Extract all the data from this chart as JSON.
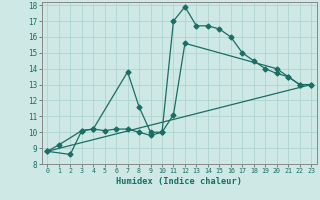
{
  "xlabel": "Humidex (Indice chaleur)",
  "bg_color": "#cde8e5",
  "grid_color": "#aed4d0",
  "line_color": "#1a6e64",
  "xlim": [
    -0.5,
    23.5
  ],
  "ylim": [
    8,
    18.2
  ],
  "xticks": [
    0,
    1,
    2,
    3,
    4,
    5,
    6,
    7,
    8,
    9,
    10,
    11,
    12,
    13,
    14,
    15,
    16,
    17,
    18,
    19,
    20,
    21,
    22,
    23
  ],
  "yticks": [
    8,
    9,
    10,
    11,
    12,
    13,
    14,
    15,
    16,
    17,
    18
  ],
  "line1_x": [
    0,
    1,
    3,
    4,
    7,
    8,
    9,
    10,
    11,
    12,
    13,
    14,
    15,
    16,
    17,
    18,
    19,
    20,
    21,
    22,
    23
  ],
  "line1_y": [
    8.8,
    9.2,
    10.1,
    10.2,
    13.8,
    11.6,
    10.0,
    10.0,
    17.0,
    17.9,
    16.7,
    16.7,
    16.5,
    16.0,
    15.0,
    14.5,
    14.0,
    13.7,
    13.5,
    13.0,
    13.0
  ],
  "line2_x": [
    0,
    2,
    3,
    4,
    5,
    6,
    7,
    8,
    9,
    10,
    11,
    12,
    20,
    21,
    22,
    23
  ],
  "line2_y": [
    8.8,
    8.6,
    10.1,
    10.2,
    10.1,
    10.2,
    10.2,
    10.0,
    9.8,
    10.0,
    11.1,
    15.6,
    14.0,
    13.5,
    13.0,
    13.0
  ],
  "line3_x": [
    0,
    23
  ],
  "line3_y": [
    8.8,
    13.0
  ]
}
